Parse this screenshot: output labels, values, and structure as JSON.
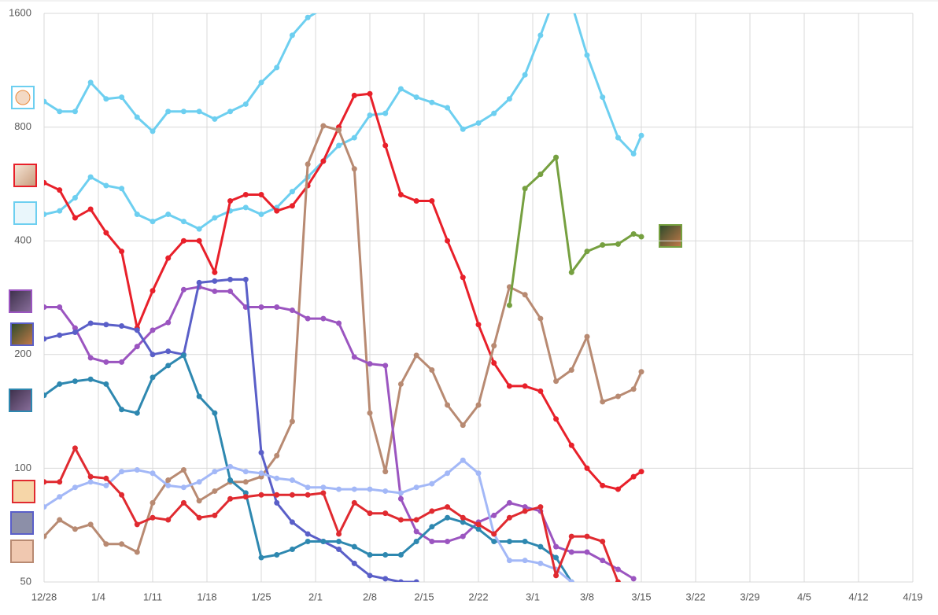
{
  "chart_data": {
    "type": "line",
    "log_y": true,
    "grid": true,
    "ylim": [
      50,
      1600
    ],
    "yticks": [
      50,
      100,
      200,
      400,
      800,
      1600
    ],
    "xlim": [
      0,
      112
    ],
    "xticks": [
      {
        "value": 0,
        "label": "12/28"
      },
      {
        "value": 7,
        "label": "1/4"
      },
      {
        "value": 14,
        "label": "1/11"
      },
      {
        "value": 21,
        "label": "1/18"
      },
      {
        "value": 28,
        "label": "1/25"
      },
      {
        "value": 35,
        "label": "2/1"
      },
      {
        "value": 42,
        "label": "2/8"
      },
      {
        "value": 49,
        "label": "2/15"
      },
      {
        "value": 56,
        "label": "2/22"
      },
      {
        "value": 63,
        "label": "3/1"
      },
      {
        "value": 70,
        "label": "3/8"
      },
      {
        "value": 77,
        "label": "3/15"
      },
      {
        "value": 84,
        "label": "3/22"
      },
      {
        "value": 91,
        "label": "3/29"
      },
      {
        "value": 98,
        "label": "4/5"
      },
      {
        "value": 105,
        "label": "4/12"
      },
      {
        "value": 112,
        "label": "4/19"
      }
    ],
    "x": [
      0,
      2,
      4,
      6,
      8,
      10,
      12,
      14,
      16,
      18,
      20,
      22,
      24,
      26,
      28,
      30,
      32,
      34,
      36,
      38,
      40,
      42,
      44,
      46,
      48,
      50,
      52,
      54,
      56,
      58,
      60,
      62,
      64,
      66,
      68,
      70,
      72,
      74,
      76,
      77
    ],
    "series": [
      {
        "color": "#6dcff0",
        "values": [
          935,
          880,
          880,
          1050,
          950,
          960,
          850,
          780,
          880,
          880,
          880,
          840,
          880,
          920,
          1050,
          1150,
          1400,
          1560,
          1650,
          null,
          null,
          null,
          null,
          null,
          null,
          null,
          null,
          null,
          null,
          null,
          null,
          null,
          null,
          null,
          null,
          null,
          null,
          null,
          null,
          null
        ]
      },
      {
        "color": "#6dcff0",
        "values": [
          470,
          480,
          520,
          590,
          560,
          550,
          470,
          450,
          470,
          450,
          430,
          460,
          480,
          490,
          470,
          490,
          540,
          590,
          650,
          715,
          750,
          860,
          870,
          1010,
          960,
          930,
          900,
          790,
          820,
          870,
          950,
          1100,
          1400,
          1800,
          1700,
          1240,
          960,
          750,
          680,
          760
        ]
      },
      {
        "color": "#e8202a",
        "values": [
          570,
          545,
          460,
          485,
          420,
          375,
          235,
          295,
          360,
          400,
          400,
          330,
          510,
          530,
          530,
          480,
          495,
          560,
          650,
          800,
          970,
          980,
          715,
          530,
          510,
          510,
          400,
          320,
          240,
          190,
          165,
          165,
          160,
          135,
          115,
          100,
          90,
          88,
          95,
          98
        ]
      },
      {
        "color": "#b88a72",
        "values": [
          66,
          73,
          69,
          71,
          63,
          63,
          60,
          81,
          93,
          99,
          82,
          87,
          92,
          92,
          95,
          108,
          133,
          638,
          806,
          785,
          620,
          140,
          98,
          167,
          199,
          182,
          147,
          130,
          147,
          211,
          302,
          288,
          249,
          170,
          182,
          223,
          150,
          155,
          162,
          180
        ]
      },
      {
        "color": "#76a040",
        "values": [
          null,
          null,
          null,
          null,
          null,
          null,
          null,
          null,
          null,
          null,
          null,
          null,
          null,
          null,
          null,
          null,
          null,
          null,
          null,
          null,
          null,
          null,
          null,
          null,
          null,
          null,
          null,
          null,
          null,
          null,
          270,
          550,
          600,
          665,
          330,
          375,
          390,
          392,
          417,
          410
        ]
      },
      {
        "color": "#9b55c0",
        "values": [
          267,
          267,
          235,
          196,
          191,
          191,
          210,
          232,
          243,
          297,
          302,
          294,
          294,
          267,
          267,
          267,
          262,
          249,
          249,
          242,
          197,
          189,
          187,
          83,
          68,
          64,
          64,
          66,
          72,
          75,
          81,
          79,
          77,
          62,
          60,
          60,
          57,
          54,
          51,
          null
        ]
      },
      {
        "color": "#5a5fc8",
        "values": [
          220,
          225,
          229,
          242,
          240,
          238,
          232,
          200,
          204,
          200,
          310,
          313,
          316,
          316,
          110,
          81,
          72,
          67,
          64,
          61,
          56,
          52,
          51,
          50,
          50,
          null,
          null,
          null,
          null,
          null,
          null,
          null,
          null,
          null,
          null,
          null,
          null,
          null,
          null,
          null
        ]
      },
      {
        "color": "#2e88b0",
        "values": [
          156,
          167,
          170,
          172,
          167,
          143,
          140,
          174,
          187,
          199,
          155,
          140,
          93,
          86,
          58,
          59,
          61,
          64,
          64,
          64,
          62,
          59,
          59,
          59,
          64,
          70,
          74,
          72,
          69,
          64,
          64,
          64,
          62,
          58,
          50,
          null,
          null,
          null,
          null,
          null
        ]
      },
      {
        "color": "#a3b8f7",
        "values": [
          79,
          84,
          89,
          92,
          90,
          98,
          99,
          97,
          90,
          89,
          92,
          98,
          101,
          98,
          97,
          94,
          93,
          89,
          89,
          88,
          88,
          88,
          87,
          86,
          89,
          91,
          97,
          105,
          97,
          67,
          57,
          57,
          56,
          54,
          50,
          null,
          null,
          null,
          null,
          null
        ]
      },
      {
        "color": "#e02a30",
        "values": [
          92,
          92,
          113,
          95,
          94,
          85,
          71,
          74,
          73,
          81,
          74,
          75,
          83,
          84,
          85,
          85,
          85,
          85,
          86,
          67,
          81,
          76,
          76,
          73,
          73,
          77,
          79,
          74,
          71,
          67,
          74,
          77,
          79,
          52,
          66,
          66,
          64,
          50,
          null,
          null
        ]
      }
    ]
  }
}
